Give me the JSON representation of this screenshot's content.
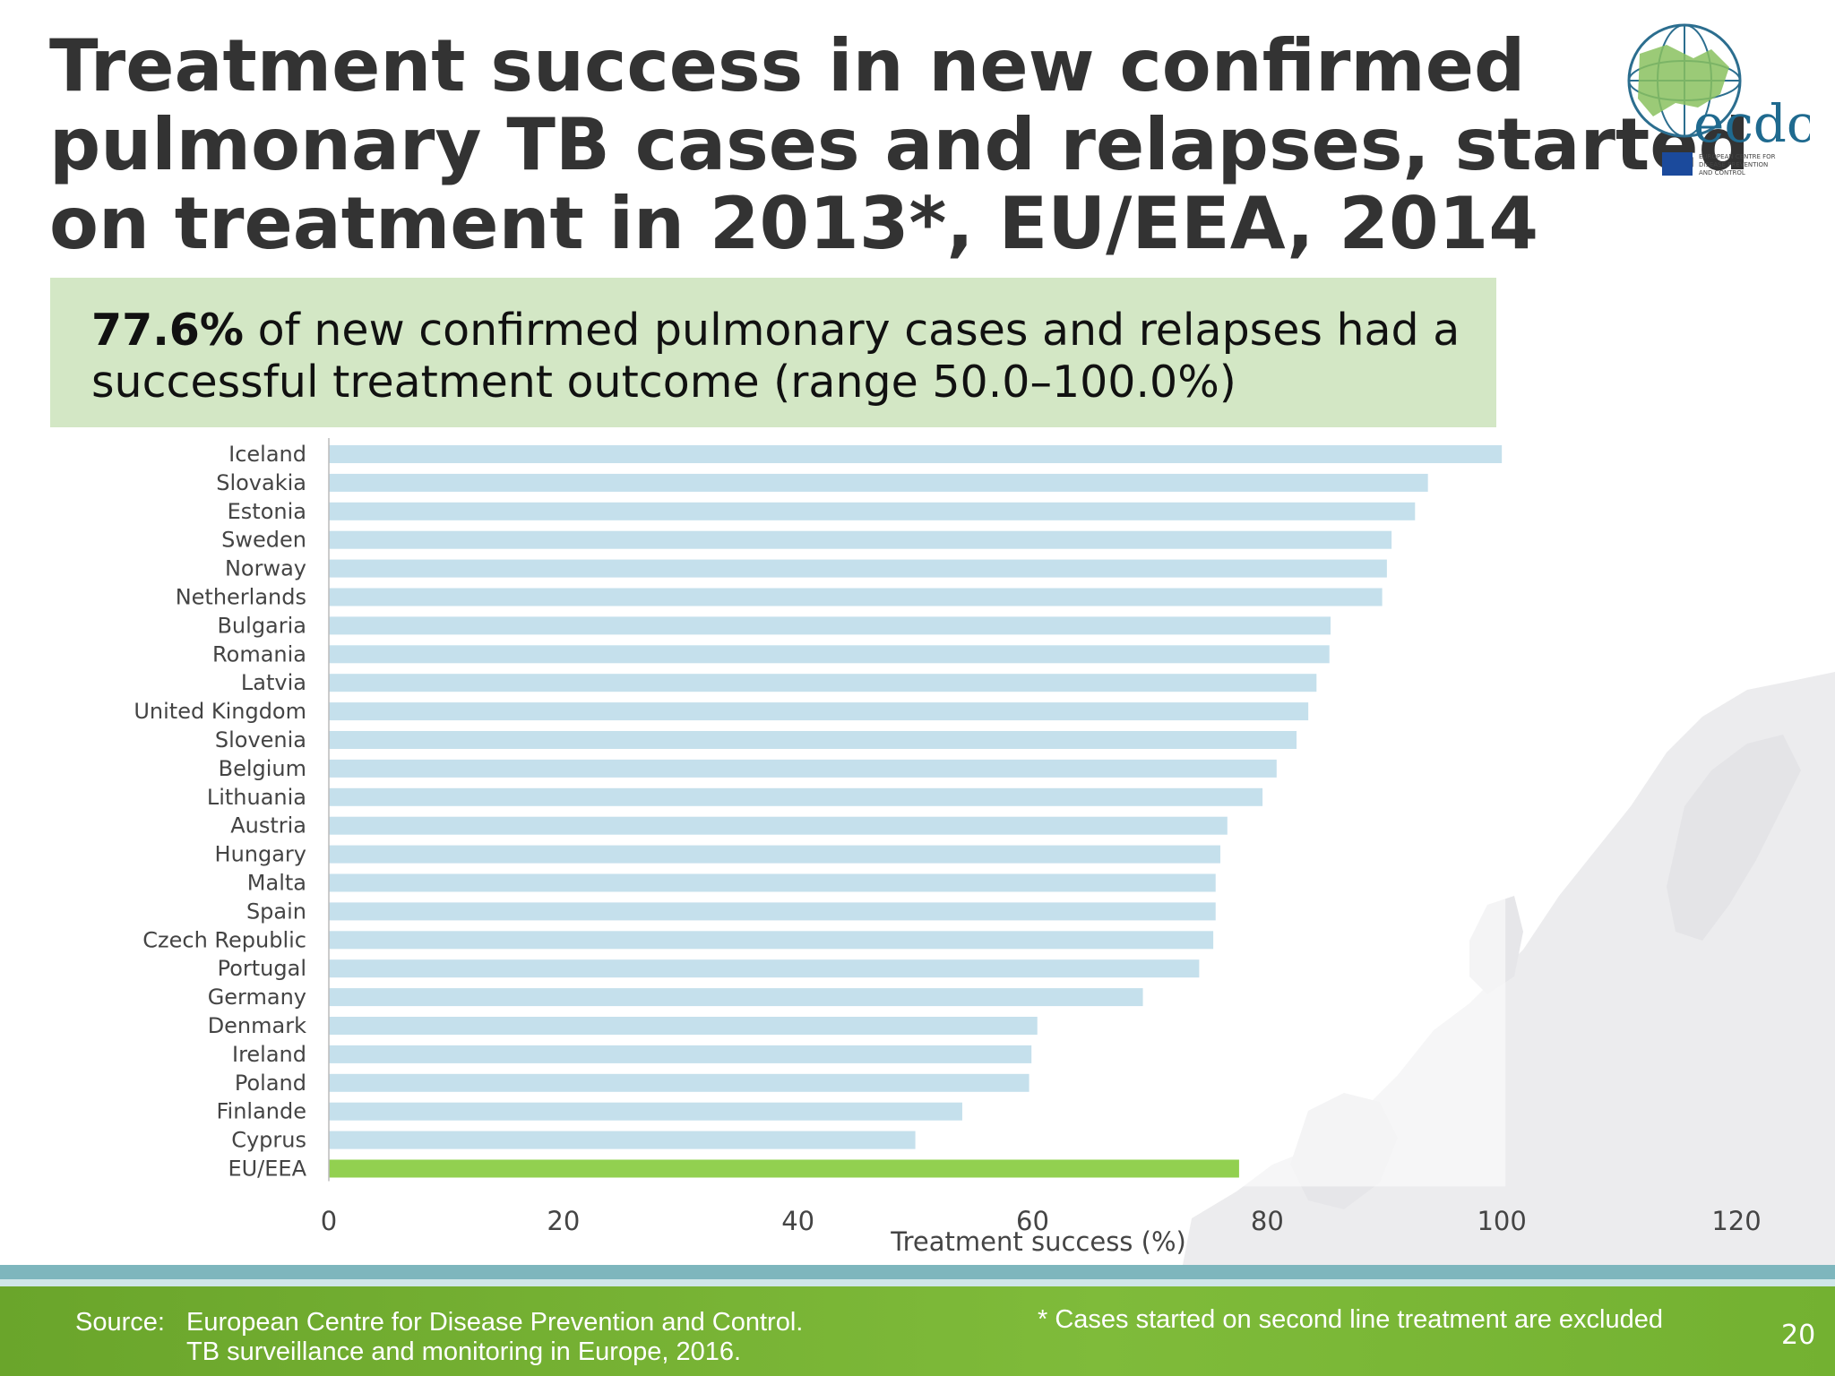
{
  "slide": {
    "title_lines": [
      "Treatment success in new confirmed",
      "pulmonary TB cases and relapses, started",
      "on treatment in 2013*, EU/EEA, 2014"
    ],
    "page_number": "20"
  },
  "logo": {
    "text": "ecdc",
    "subtitle_lines": [
      "EUROPEAN CENTRE FOR",
      "DISEASE PREVENTION",
      "AND CONTROL"
    ],
    "icon": "globe-icon"
  },
  "callout": {
    "highlight": "77.6%",
    "text_line1": " of new confirmed pulmonary cases and relapses had a",
    "text_line2": "successful treatment outcome (range 50.0–100.0%)"
  },
  "footer": {
    "source_label": "Source:",
    "source_line1": "European Centre for Disease Prevention and Control.",
    "source_line2": "TB surveillance and monitoring in Europe, 2016.",
    "footnote": "* Cases started on second line treatment are excluded"
  },
  "colors": {
    "bar": "#c5e0ec",
    "highlight_bar": "#92d050",
    "callout_bg": "#d3e7c5",
    "title": "#333333"
  },
  "chart_data": {
    "type": "bar",
    "orientation": "horizontal",
    "categories": [
      "Iceland",
      "Slovakia",
      "Estonia",
      "Sweden",
      "Norway",
      "Netherlands",
      "Bulgaria",
      "Romania",
      "Latvia",
      "United Kingdom",
      "Slovenia",
      "Belgium",
      "Lithuania",
      "Austria",
      "Hungary",
      "Malta",
      "Spain",
      "Czech Republic",
      "Portugal",
      "Germany",
      "Denmark",
      "Ireland",
      "Poland",
      "Finlande",
      "Cyprus",
      "EU/EEA"
    ],
    "values": [
      100.0,
      93.7,
      92.6,
      90.6,
      90.2,
      89.8,
      85.4,
      85.3,
      84.2,
      83.5,
      82.5,
      80.8,
      79.6,
      76.6,
      76.0,
      75.6,
      75.6,
      75.4,
      74.2,
      69.4,
      60.4,
      59.9,
      59.7,
      54.0,
      50.0,
      77.6
    ],
    "highlight_category": "EU/EEA",
    "xlabel": "Treatment success (%)",
    "ylabel": "",
    "xlim": [
      0,
      120
    ],
    "xticks": [
      0,
      20,
      40,
      60,
      80,
      100,
      120
    ],
    "grid": false,
    "legend": "none"
  }
}
